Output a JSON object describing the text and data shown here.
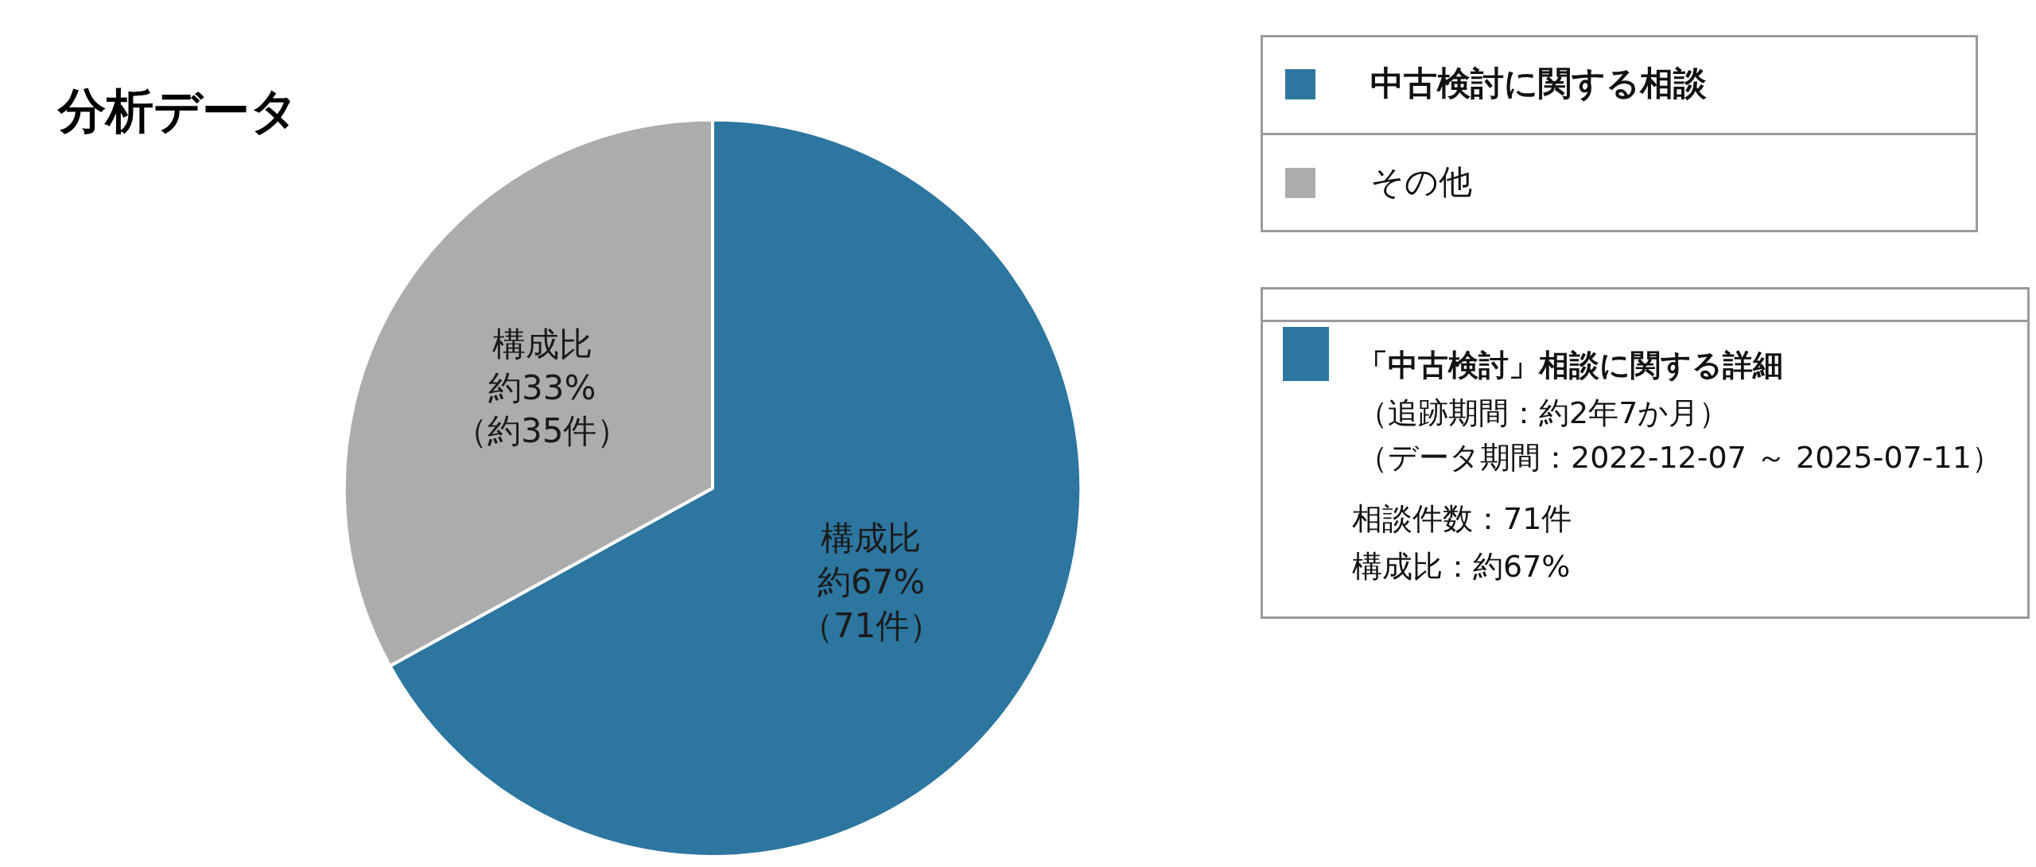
{
  "chart_data": {
    "type": "pie",
    "title": "分析データ",
    "categories": [
      "中古検討に関する相談",
      "その他"
    ],
    "values": [
      71,
      35
    ],
    "colors": [
      "#2c76a0",
      "#acacac"
    ],
    "value_labels": [
      "構成比約67%（71件）",
      "構成比約33%（約35件）"
    ],
    "legend": "top right",
    "annotations": [
      "「中古検討」相談に関する詳細",
      "（追跡期間：約2年7か月）",
      "（データ期間：2022-12-07 ～ 2025-07-11）",
      "相談件数：71件",
      "構成比：約67%"
    ]
  }
}
